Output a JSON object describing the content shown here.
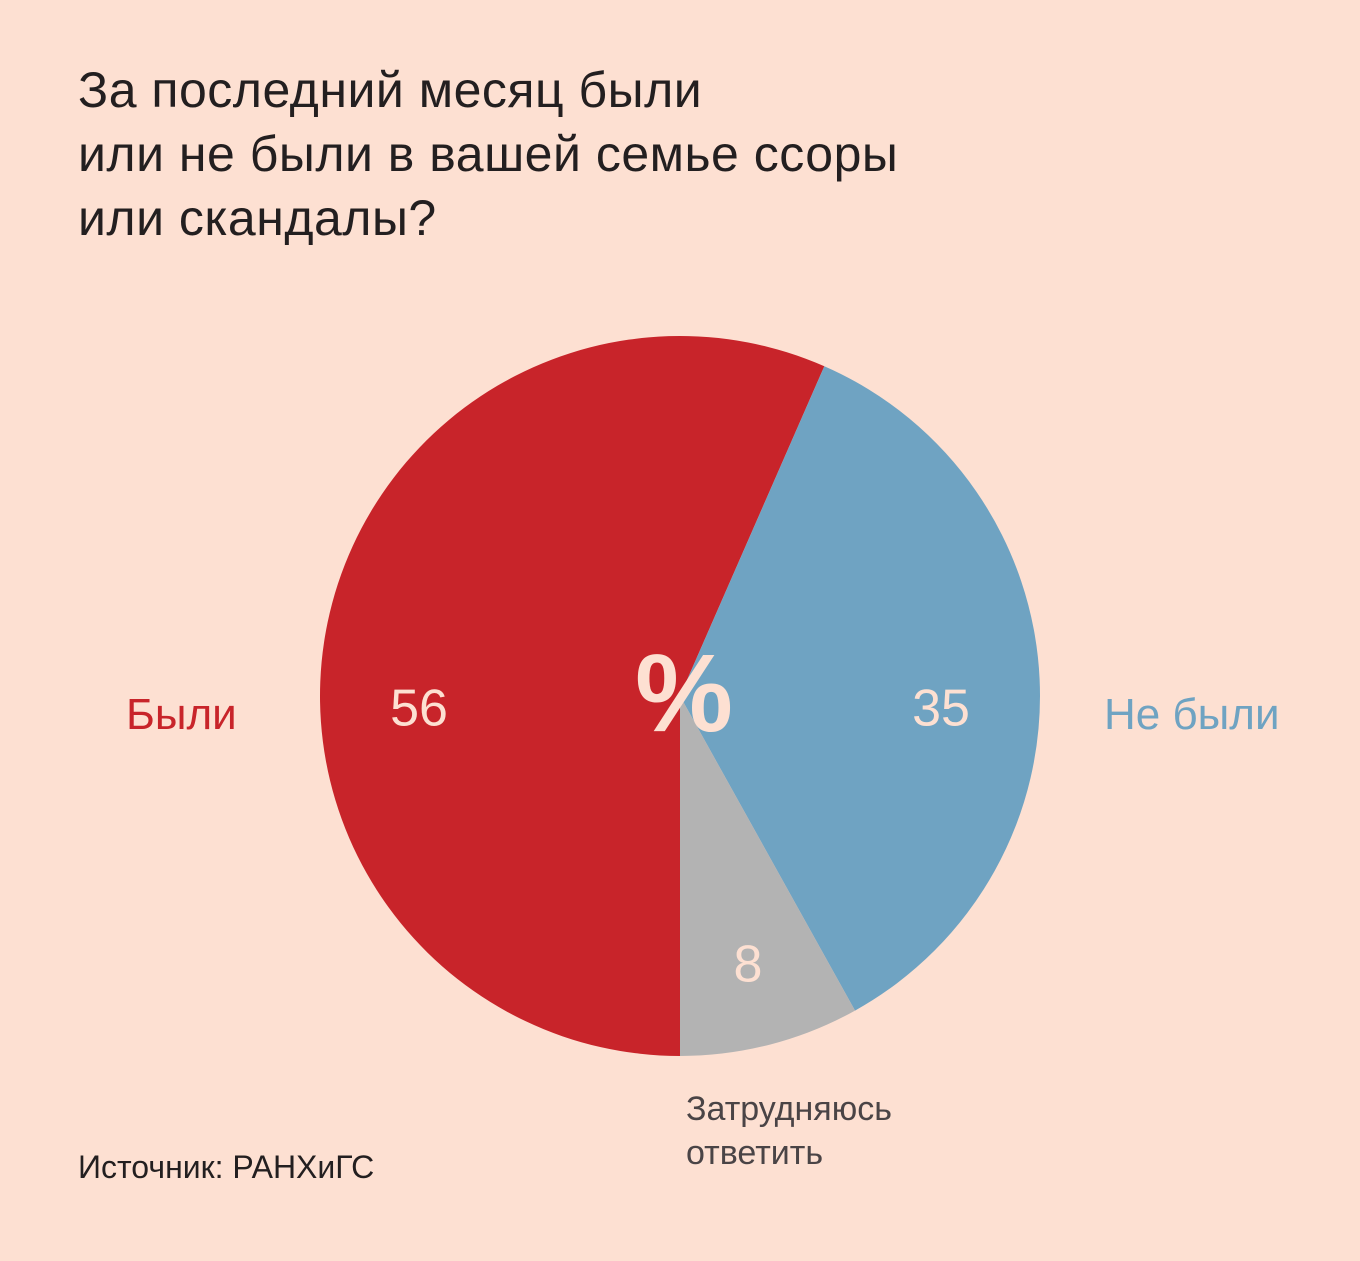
{
  "title_lines": [
    "За последний месяц были",
    "или не были в вашей семье ссоры",
    "или скандалы?"
  ],
  "source": "Источник: РАНХиГС",
  "center_symbol": "%",
  "chart_data": {
    "type": "pie",
    "unit": "%",
    "slices": [
      {
        "label": "Были",
        "value": 56,
        "value_label": "56",
        "color": "#c8242a"
      },
      {
        "label": "Не были",
        "value": 35,
        "value_label": "35",
        "color": "#6fa3c2"
      },
      {
        "label_lines": [
          "Затрудняюсь",
          "ответить"
        ],
        "value": 8,
        "value_label": "8",
        "color": "#b3b3b3"
      }
    ]
  }
}
